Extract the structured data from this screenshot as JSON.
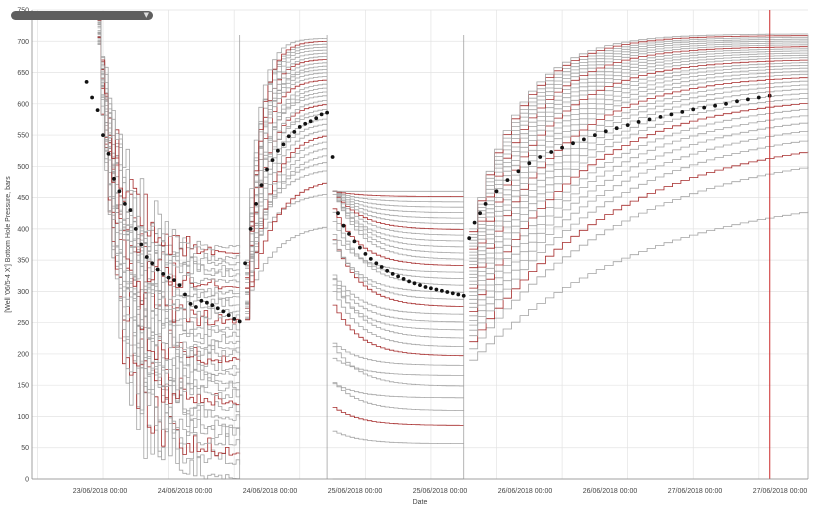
{
  "colors": {
    "simulation": "#a3a3a3",
    "highlight": "#a52a2a",
    "observed": "#111111",
    "cursor": "#cc2b2b",
    "grid": "#e3e3e3",
    "axis": "#8a8a8a"
  },
  "selector": {
    "icon": "chevron-down-icon"
  },
  "chart_data": {
    "type": "line",
    "xlabel": "Date",
    "ylabel": "[Well '06/5-4 X'] Bottom Hole Pressure, bars",
    "x_axis": {
      "range": [
        "2018-06-22T11:00",
        "2018-06-28T09:00"
      ],
      "tick_labels": [
        "23/06/2018 00:00",
        "24/06/2018 00:00",
        "24/06/2018 00:00",
        "25/06/2018 00:00",
        "25/06/2018 00:00",
        "26/06/2018 00:00",
        "26/06/2018 00:00",
        "27/06/2018 00:00",
        "27/06/2018 00:00"
      ]
    },
    "y_axis": {
      "range": [
        0,
        750
      ],
      "ticks": [
        0,
        50,
        100,
        150,
        200,
        250,
        300,
        350,
        400,
        450,
        500,
        550,
        600,
        650,
        700,
        750
      ]
    },
    "grid": true,
    "cursor_x": "2018-06-28T02:00",
    "series": [
      {
        "kind": "observed",
        "points": [
          [
            "2018-06-22T21:00",
            635
          ],
          [
            "2018-06-22T22:00",
            610
          ],
          [
            "2018-06-22T23:00",
            590
          ],
          [
            "2018-06-23T00:00",
            550
          ],
          [
            "2018-06-23T01:00",
            520
          ],
          [
            "2018-06-23T02:00",
            480
          ],
          [
            "2018-06-23T03:00",
            460
          ],
          [
            "2018-06-23T04:00",
            440
          ],
          [
            "2018-06-23T05:00",
            430
          ],
          [
            "2018-06-23T06:00",
            400
          ],
          [
            "2018-06-23T07:00",
            375
          ],
          [
            "2018-06-23T08:00",
            355
          ],
          [
            "2018-06-23T09:00",
            345
          ],
          [
            "2018-06-23T10:00",
            335
          ],
          [
            "2018-06-23T11:00",
            328
          ],
          [
            "2018-06-23T12:00",
            322
          ],
          [
            "2018-06-23T13:00",
            318
          ],
          [
            "2018-06-23T14:00",
            310
          ],
          [
            "2018-06-23T15:00",
            295
          ],
          [
            "2018-06-23T16:00",
            280
          ],
          [
            "2018-06-23T17:00",
            275
          ],
          [
            "2018-06-23T18:00",
            285
          ],
          [
            "2018-06-23T19:00",
            282
          ],
          [
            "2018-06-23T20:00",
            278
          ],
          [
            "2018-06-23T21:00",
            273
          ],
          [
            "2018-06-23T22:00",
            268
          ],
          [
            "2018-06-23T23:00",
            262
          ],
          [
            "2018-06-24T00:00",
            256
          ],
          [
            "2018-06-24T01:00",
            252
          ],
          [
            "2018-06-24T02:00",
            345
          ],
          [
            "2018-06-24T03:00",
            400
          ],
          [
            "2018-06-24T04:00",
            440
          ],
          [
            "2018-06-24T05:00",
            470
          ],
          [
            "2018-06-24T06:00",
            495
          ],
          [
            "2018-06-24T07:00",
            510
          ],
          [
            "2018-06-24T08:00",
            525
          ],
          [
            "2018-06-24T09:00",
            535
          ],
          [
            "2018-06-24T10:00",
            548
          ],
          [
            "2018-06-24T11:00",
            555
          ],
          [
            "2018-06-24T12:00",
            563
          ],
          [
            "2018-06-24T13:00",
            568
          ],
          [
            "2018-06-24T14:00",
            572
          ],
          [
            "2018-06-24T15:00",
            577
          ],
          [
            "2018-06-24T16:00",
            583
          ],
          [
            "2018-06-24T17:00",
            586
          ],
          [
            "2018-06-24T18:00",
            515
          ],
          [
            "2018-06-24T19:00",
            425
          ],
          [
            "2018-06-24T20:00",
            405
          ],
          [
            "2018-06-24T21:00",
            392
          ],
          [
            "2018-06-24T22:00",
            380
          ],
          [
            "2018-06-24T23:00",
            370
          ],
          [
            "2018-06-25T00:00",
            360
          ],
          [
            "2018-06-25T01:00",
            352
          ],
          [
            "2018-06-25T02:00",
            345
          ],
          [
            "2018-06-25T03:00",
            339
          ],
          [
            "2018-06-25T04:00",
            333
          ],
          [
            "2018-06-25T05:00",
            328
          ],
          [
            "2018-06-25T06:00",
            324
          ],
          [
            "2018-06-25T07:00",
            320
          ],
          [
            "2018-06-25T08:00",
            316
          ],
          [
            "2018-06-25T09:00",
            313
          ],
          [
            "2018-06-25T10:00",
            310
          ],
          [
            "2018-06-25T11:00",
            307
          ],
          [
            "2018-06-25T12:00",
            305
          ],
          [
            "2018-06-25T13:00",
            303
          ],
          [
            "2018-06-25T14:00",
            301
          ],
          [
            "2018-06-25T15:00",
            299
          ],
          [
            "2018-06-25T16:00",
            297
          ],
          [
            "2018-06-25T17:00",
            295
          ],
          [
            "2018-06-25T18:00",
            293
          ],
          [
            "2018-06-25T19:00",
            385
          ],
          [
            "2018-06-25T20:00",
            410
          ],
          [
            "2018-06-25T21:00",
            425
          ],
          [
            "2018-06-25T22:00",
            440
          ],
          [
            "2018-06-26T00:00",
            460
          ],
          [
            "2018-06-26T02:00",
            478
          ],
          [
            "2018-06-26T04:00",
            492
          ],
          [
            "2018-06-26T06:00",
            505
          ],
          [
            "2018-06-26T08:00",
            515
          ],
          [
            "2018-06-26T10:00",
            523
          ],
          [
            "2018-06-26T12:00",
            530
          ],
          [
            "2018-06-26T14:00",
            537
          ],
          [
            "2018-06-26T16:00",
            543
          ],
          [
            "2018-06-26T18:00",
            550
          ],
          [
            "2018-06-26T20:00",
            556
          ],
          [
            "2018-06-26T22:00",
            561
          ],
          [
            "2018-06-27T00:00",
            566
          ],
          [
            "2018-06-27T02:00",
            571
          ],
          [
            "2018-06-27T04:00",
            575
          ],
          [
            "2018-06-27T06:00",
            579
          ],
          [
            "2018-06-27T08:00",
            583
          ],
          [
            "2018-06-27T10:00",
            587
          ],
          [
            "2018-06-27T12:00",
            591
          ],
          [
            "2018-06-27T14:00",
            594
          ],
          [
            "2018-06-27T16:00",
            597
          ],
          [
            "2018-06-27T18:00",
            600
          ],
          [
            "2018-06-27T20:00",
            604
          ],
          [
            "2018-06-27T22:00",
            607
          ],
          [
            "2018-06-28T00:00",
            610
          ],
          [
            "2018-06-28T02:00",
            613
          ]
        ]
      }
    ],
    "simulation_ensemble": {
      "segments": [
        {
          "from": "2018-06-22T23:00",
          "to": "2018-06-24T01:00",
          "start": 715,
          "end_range": [
            0,
            370
          ]
        },
        {
          "from": "2018-06-24T02:00",
          "to": "2018-06-24T17:00",
          "start_range": [
            250,
            350
          ],
          "end_range": [
            410,
            705
          ]
        },
        {
          "from": "2018-06-24T18:00",
          "to": "2018-06-25T18:00",
          "start_range": [
            0,
            450
          ],
          "end_range": [
            0,
            460
          ]
        },
        {
          "from": "2018-06-25T19:00",
          "to": "2018-06-28T09:00",
          "start_range": [
            190,
            400
          ],
          "end_range": [
            465,
            712
          ]
        }
      ]
    }
  }
}
